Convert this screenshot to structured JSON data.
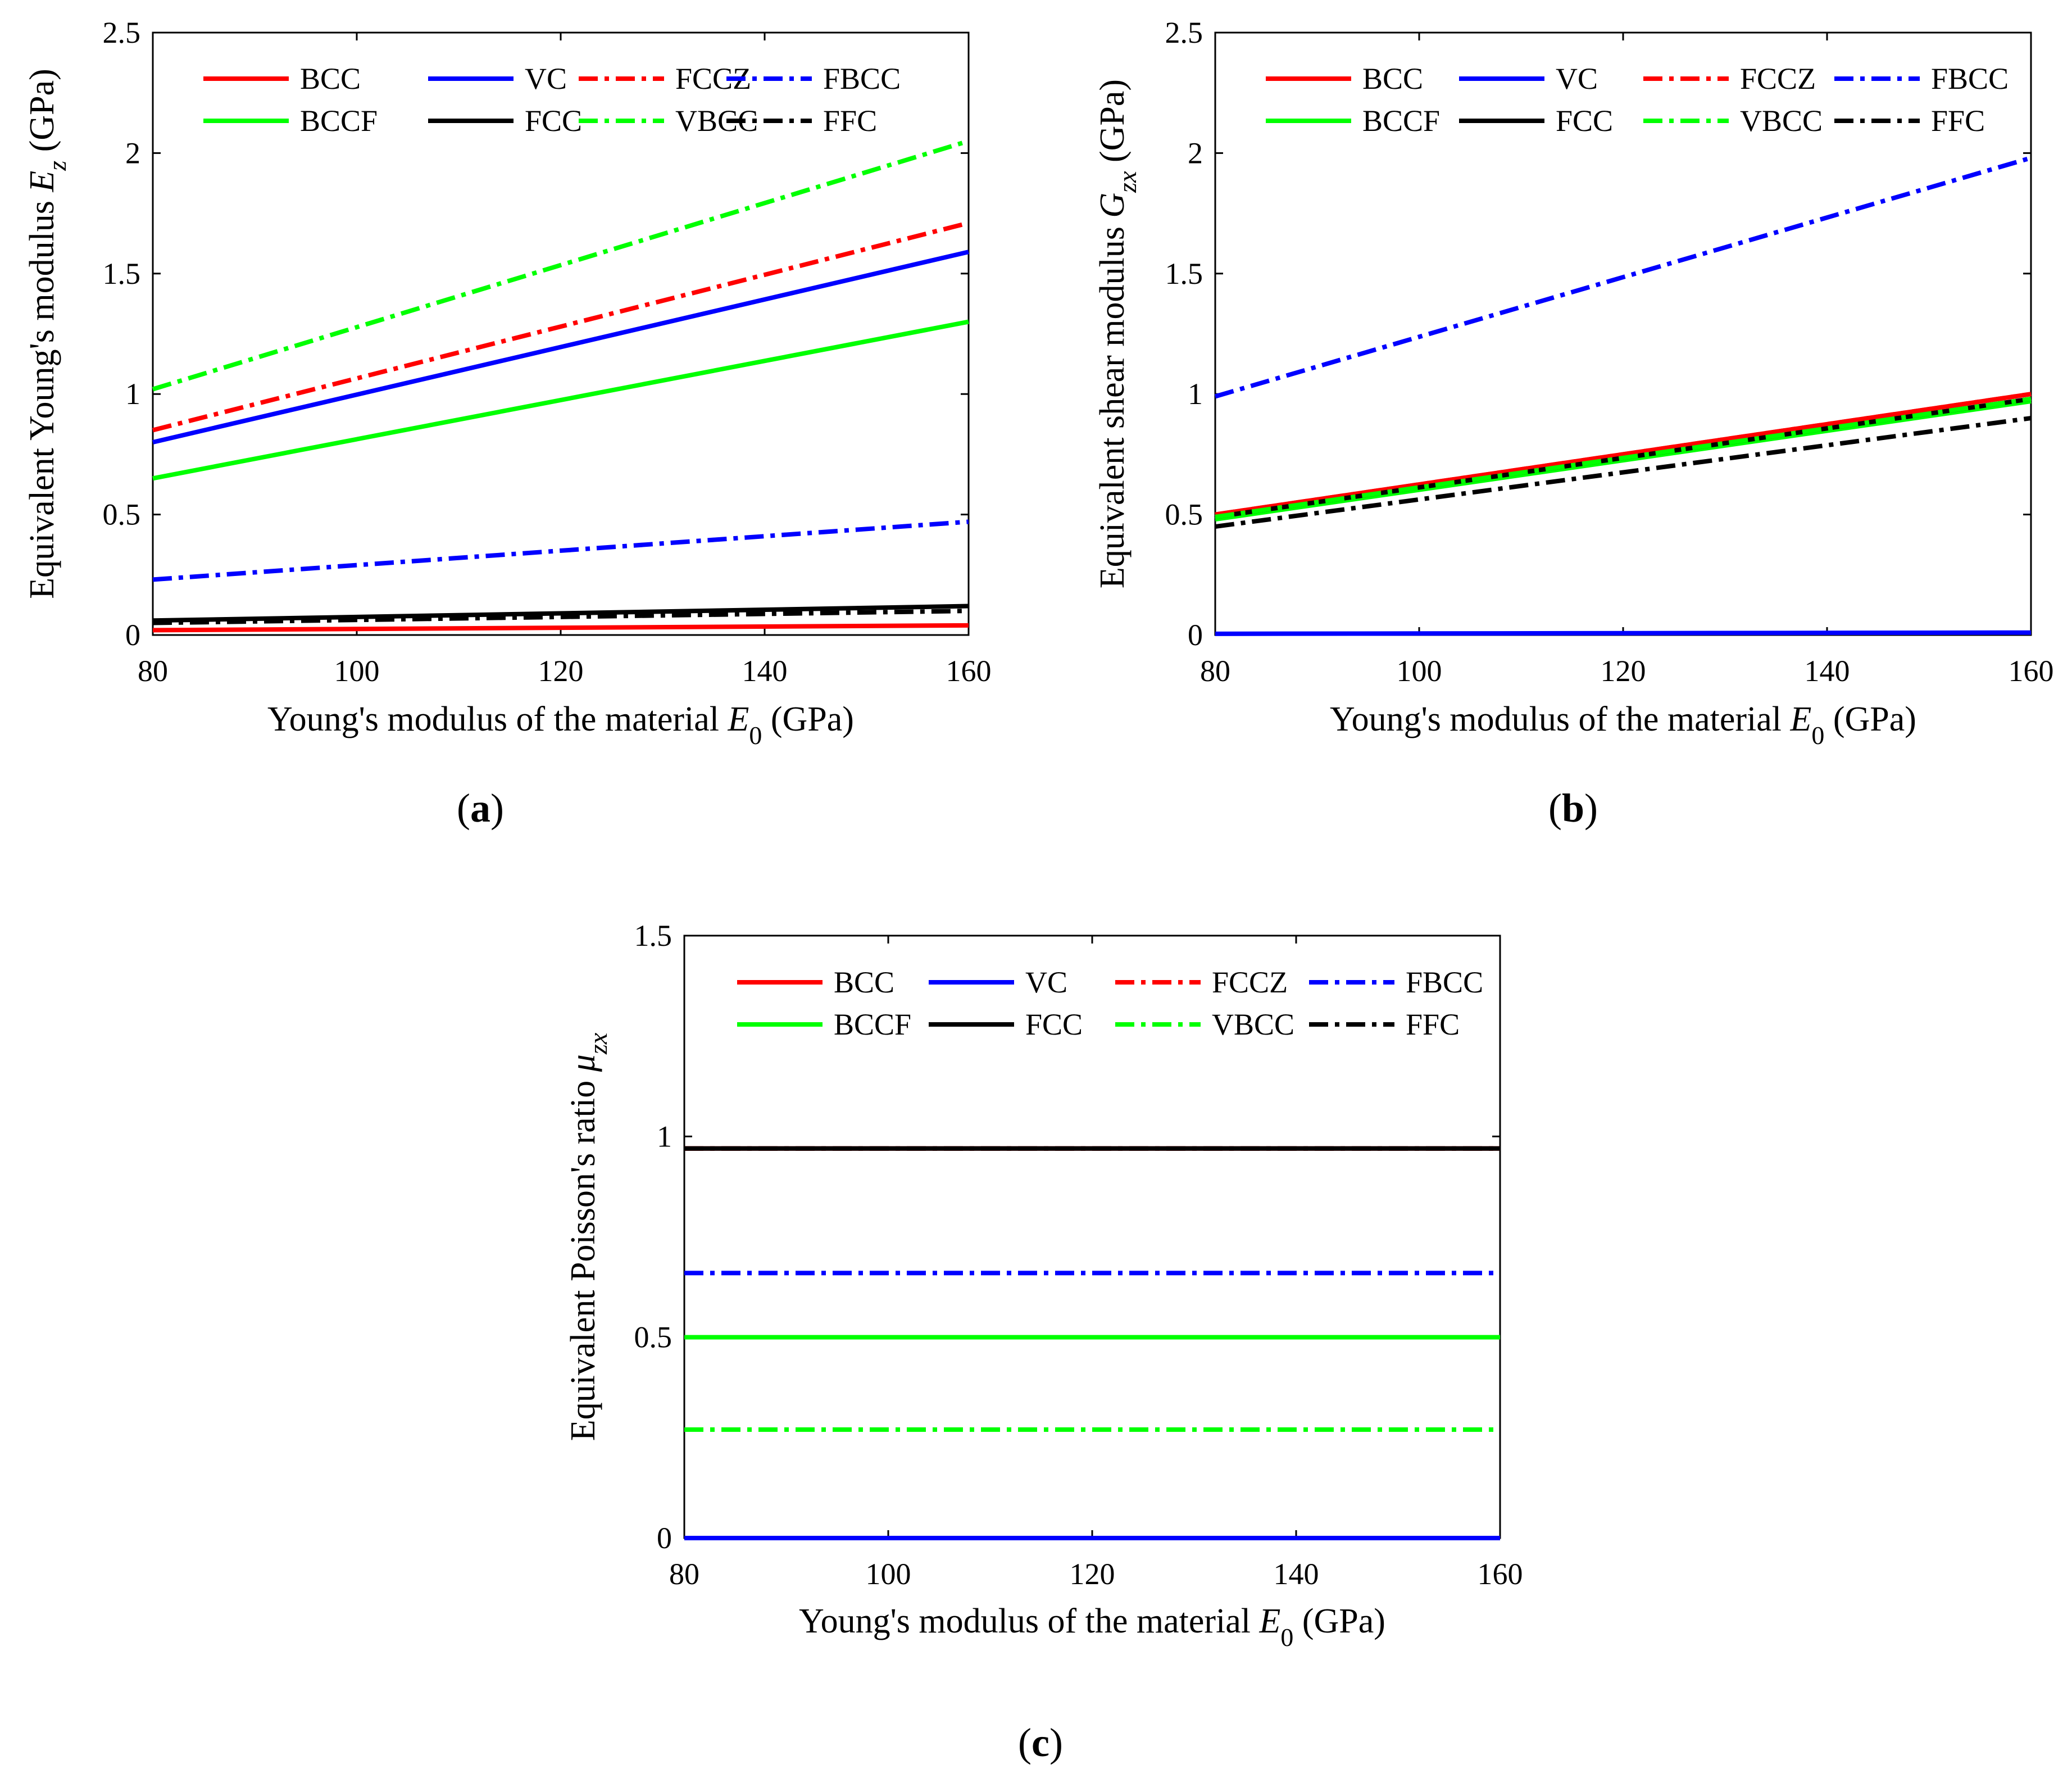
{
  "figure": {
    "captions": [
      "a",
      "b",
      "c"
    ]
  },
  "styles": {
    "BCC": {
      "color": "#ff0000",
      "dash": "solid"
    },
    "VC": {
      "color": "#0000ff",
      "dash": "solid"
    },
    "FCCZ": {
      "color": "#ff0000",
      "dash": "dashdot"
    },
    "FBCC": {
      "color": "#0000ff",
      "dash": "dashdot"
    },
    "BCCF": {
      "color": "#00ff00",
      "dash": "solid"
    },
    "FCC": {
      "color": "#000000",
      "dash": "solid"
    },
    "VBCC": {
      "color": "#00ff00",
      "dash": "dashdot"
    },
    "FFC": {
      "color": "#000000",
      "dash": "dashdot"
    }
  },
  "chart_data": [
    {
      "type": "line",
      "caption": "a",
      "xlabel": "Young's modulus of the material",
      "xlabel_symbol": "E",
      "xlabel_subscript": "0",
      "xlabel_unit": "(GPa)",
      "ylabel": "Equivalent Young's modulus",
      "ylabel_symbol": "E",
      "ylabel_subscript": "z",
      "ylabel_unit": "(GPa)",
      "xlim": [
        80,
        160
      ],
      "ylim": [
        0,
        2.5
      ],
      "xticks": [
        "80",
        "100",
        "120",
        "140",
        "160"
      ],
      "yticks": [
        "0",
        "0.5",
        "1",
        "1.5",
        "2",
        "2.5"
      ],
      "legend": [
        [
          "BCC",
          "VC",
          "FCCZ",
          "FBCC"
        ],
        [
          "BCCF",
          "FCC",
          "VBCC",
          "FFC"
        ]
      ],
      "series": [
        {
          "name": "BCC",
          "x": [
            80,
            160
          ],
          "y": [
            0.02,
            0.04
          ]
        },
        {
          "name": "VC",
          "x": [
            80,
            160
          ],
          "y": [
            0.8,
            1.59
          ]
        },
        {
          "name": "FCCZ",
          "x": [
            80,
            160
          ],
          "y": [
            0.85,
            1.71
          ]
        },
        {
          "name": "FBCC",
          "x": [
            80,
            160
          ],
          "y": [
            0.23,
            0.47
          ]
        },
        {
          "name": "BCCF",
          "x": [
            80,
            160
          ],
          "y": [
            0.65,
            1.3
          ]
        },
        {
          "name": "FCC",
          "x": [
            80,
            160
          ],
          "y": [
            0.06,
            0.12
          ]
        },
        {
          "name": "VBCC",
          "x": [
            80,
            160
          ],
          "y": [
            1.02,
            2.05
          ]
        },
        {
          "name": "FFC",
          "x": [
            80,
            160
          ],
          "y": [
            0.05,
            0.1
          ]
        }
      ]
    },
    {
      "type": "line",
      "caption": "b",
      "xlabel": "Young's modulus of the material",
      "xlabel_symbol": "E",
      "xlabel_subscript": "0",
      "xlabel_unit": "(GPa)",
      "ylabel": "Equivalent shear modulus",
      "ylabel_symbol": "G",
      "ylabel_subscript": "zx",
      "ylabel_unit": "(GPa)",
      "xlim": [
        80,
        160
      ],
      "ylim": [
        0,
        2.5
      ],
      "xticks": [
        "80",
        "100",
        "120",
        "140",
        "160"
      ],
      "yticks": [
        "0",
        "0.5",
        "1",
        "1.5",
        "2",
        "2.5"
      ],
      "legend": [
        [
          "BCC",
          "VC",
          "FCCZ",
          "FBCC"
        ],
        [
          "BCCF",
          "FCC",
          "VBCC",
          "FFC"
        ]
      ],
      "series": [
        {
          "name": "BCC",
          "x": [
            80,
            160
          ],
          "y": [
            0.5,
            1.0
          ]
        },
        {
          "name": "VC",
          "x": [
            80,
            160
          ],
          "y": [
            0.005,
            0.01
          ]
        },
        {
          "name": "FCCZ",
          "x": [
            80,
            160
          ],
          "y": [
            0.5,
            1.0
          ]
        },
        {
          "name": "FBCC",
          "x": [
            80,
            160
          ],
          "y": [
            0.99,
            1.98
          ]
        },
        {
          "name": "BCCF",
          "x": [
            80,
            160
          ],
          "y": [
            0.48,
            0.97
          ]
        },
        {
          "name": "FCC",
          "x": [
            80,
            160
          ],
          "y": [
            0.49,
            0.98
          ]
        },
        {
          "name": "VBCC",
          "x": [
            80,
            160
          ],
          "y": [
            0.49,
            0.98
          ]
        },
        {
          "name": "FFC",
          "x": [
            80,
            160
          ],
          "y": [
            0.45,
            0.9
          ]
        }
      ]
    },
    {
      "type": "line",
      "caption": "c",
      "xlabel": "Young's modulus of the material",
      "xlabel_symbol": "E",
      "xlabel_subscript": "0",
      "xlabel_unit": "(GPa)",
      "ylabel": "Equivalent Poisson's ratio",
      "ylabel_symbol": "μ",
      "ylabel_subscript": "zx",
      "ylabel_unit": "",
      "xlim": [
        80,
        160
      ],
      "ylim": [
        0,
        1.5
      ],
      "xticks": [
        "80",
        "100",
        "120",
        "140",
        "160"
      ],
      "yticks": [
        "0",
        "0.5",
        "1",
        "1.5"
      ],
      "legend": [
        [
          "BCC",
          "VC",
          "FCCZ",
          "FBCC"
        ],
        [
          "BCCF",
          "FCC",
          "VBCC",
          "FFC"
        ]
      ],
      "series": [
        {
          "name": "BCC",
          "x": [
            80,
            160
          ],
          "y": [
            0.97,
            0.97
          ]
        },
        {
          "name": "VC",
          "x": [
            80,
            160
          ],
          "y": [
            0.0,
            0.0
          ]
        },
        {
          "name": "FCCZ",
          "x": [
            80,
            160
          ],
          "y": [
            0.97,
            0.97
          ]
        },
        {
          "name": "FBCC",
          "x": [
            80,
            160
          ],
          "y": [
            0.66,
            0.66
          ]
        },
        {
          "name": "BCCF",
          "x": [
            80,
            160
          ],
          "y": [
            0.5,
            0.5
          ]
        },
        {
          "name": "FCC",
          "x": [
            80,
            160
          ],
          "y": [
            0.97,
            0.97
          ]
        },
        {
          "name": "VBCC",
          "x": [
            80,
            160
          ],
          "y": [
            0.27,
            0.27
          ]
        },
        {
          "name": "FFC",
          "x": [
            80,
            160
          ],
          "y": [
            0.97,
            0.97
          ]
        }
      ]
    }
  ]
}
